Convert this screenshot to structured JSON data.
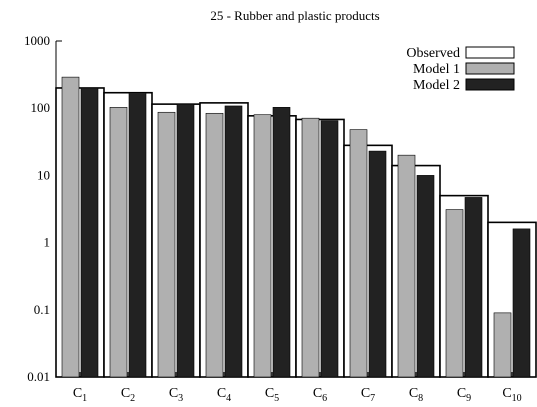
{
  "chart_data": {
    "type": "bar",
    "title": "25 - Rubber and plastic products",
    "xlabel": "",
    "ylabel": "",
    "yscale": "log",
    "ylim": [
      0.01,
      1000
    ],
    "yticks": [
      "1000",
      "100",
      "10",
      "1",
      "0.1",
      "0.01"
    ],
    "ytick_values": [
      1000,
      100,
      10,
      1,
      0.1,
      0.01
    ],
    "categories": [
      {
        "base": "C",
        "sub": "1"
      },
      {
        "base": "C",
        "sub": "2"
      },
      {
        "base": "C",
        "sub": "3"
      },
      {
        "base": "C",
        "sub": "4"
      },
      {
        "base": "C",
        "sub": "5"
      },
      {
        "base": "C",
        "sub": "6"
      },
      {
        "base": "C",
        "sub": "7"
      },
      {
        "base": "C",
        "sub": "8"
      },
      {
        "base": "C",
        "sub": "9"
      },
      {
        "base": "C",
        "sub": "10"
      }
    ],
    "series": [
      {
        "name": "Observed",
        "color": "#ffffff",
        "values": [
          200,
          170,
          115,
          120,
          77,
          68,
          28,
          14,
          5,
          2
        ]
      },
      {
        "name": "Model 1",
        "color": "#b0b0b0",
        "values": [
          290,
          103,
          87,
          84,
          80,
          71,
          48,
          20,
          3.1,
          0.09
        ]
      },
      {
        "name": "Model 2",
        "color": "#222222",
        "values": [
          200,
          170,
          115,
          108,
          103,
          65,
          23,
          10,
          4.7,
          1.6
        ]
      }
    ],
    "legend_position": "top-right",
    "grid": false
  }
}
